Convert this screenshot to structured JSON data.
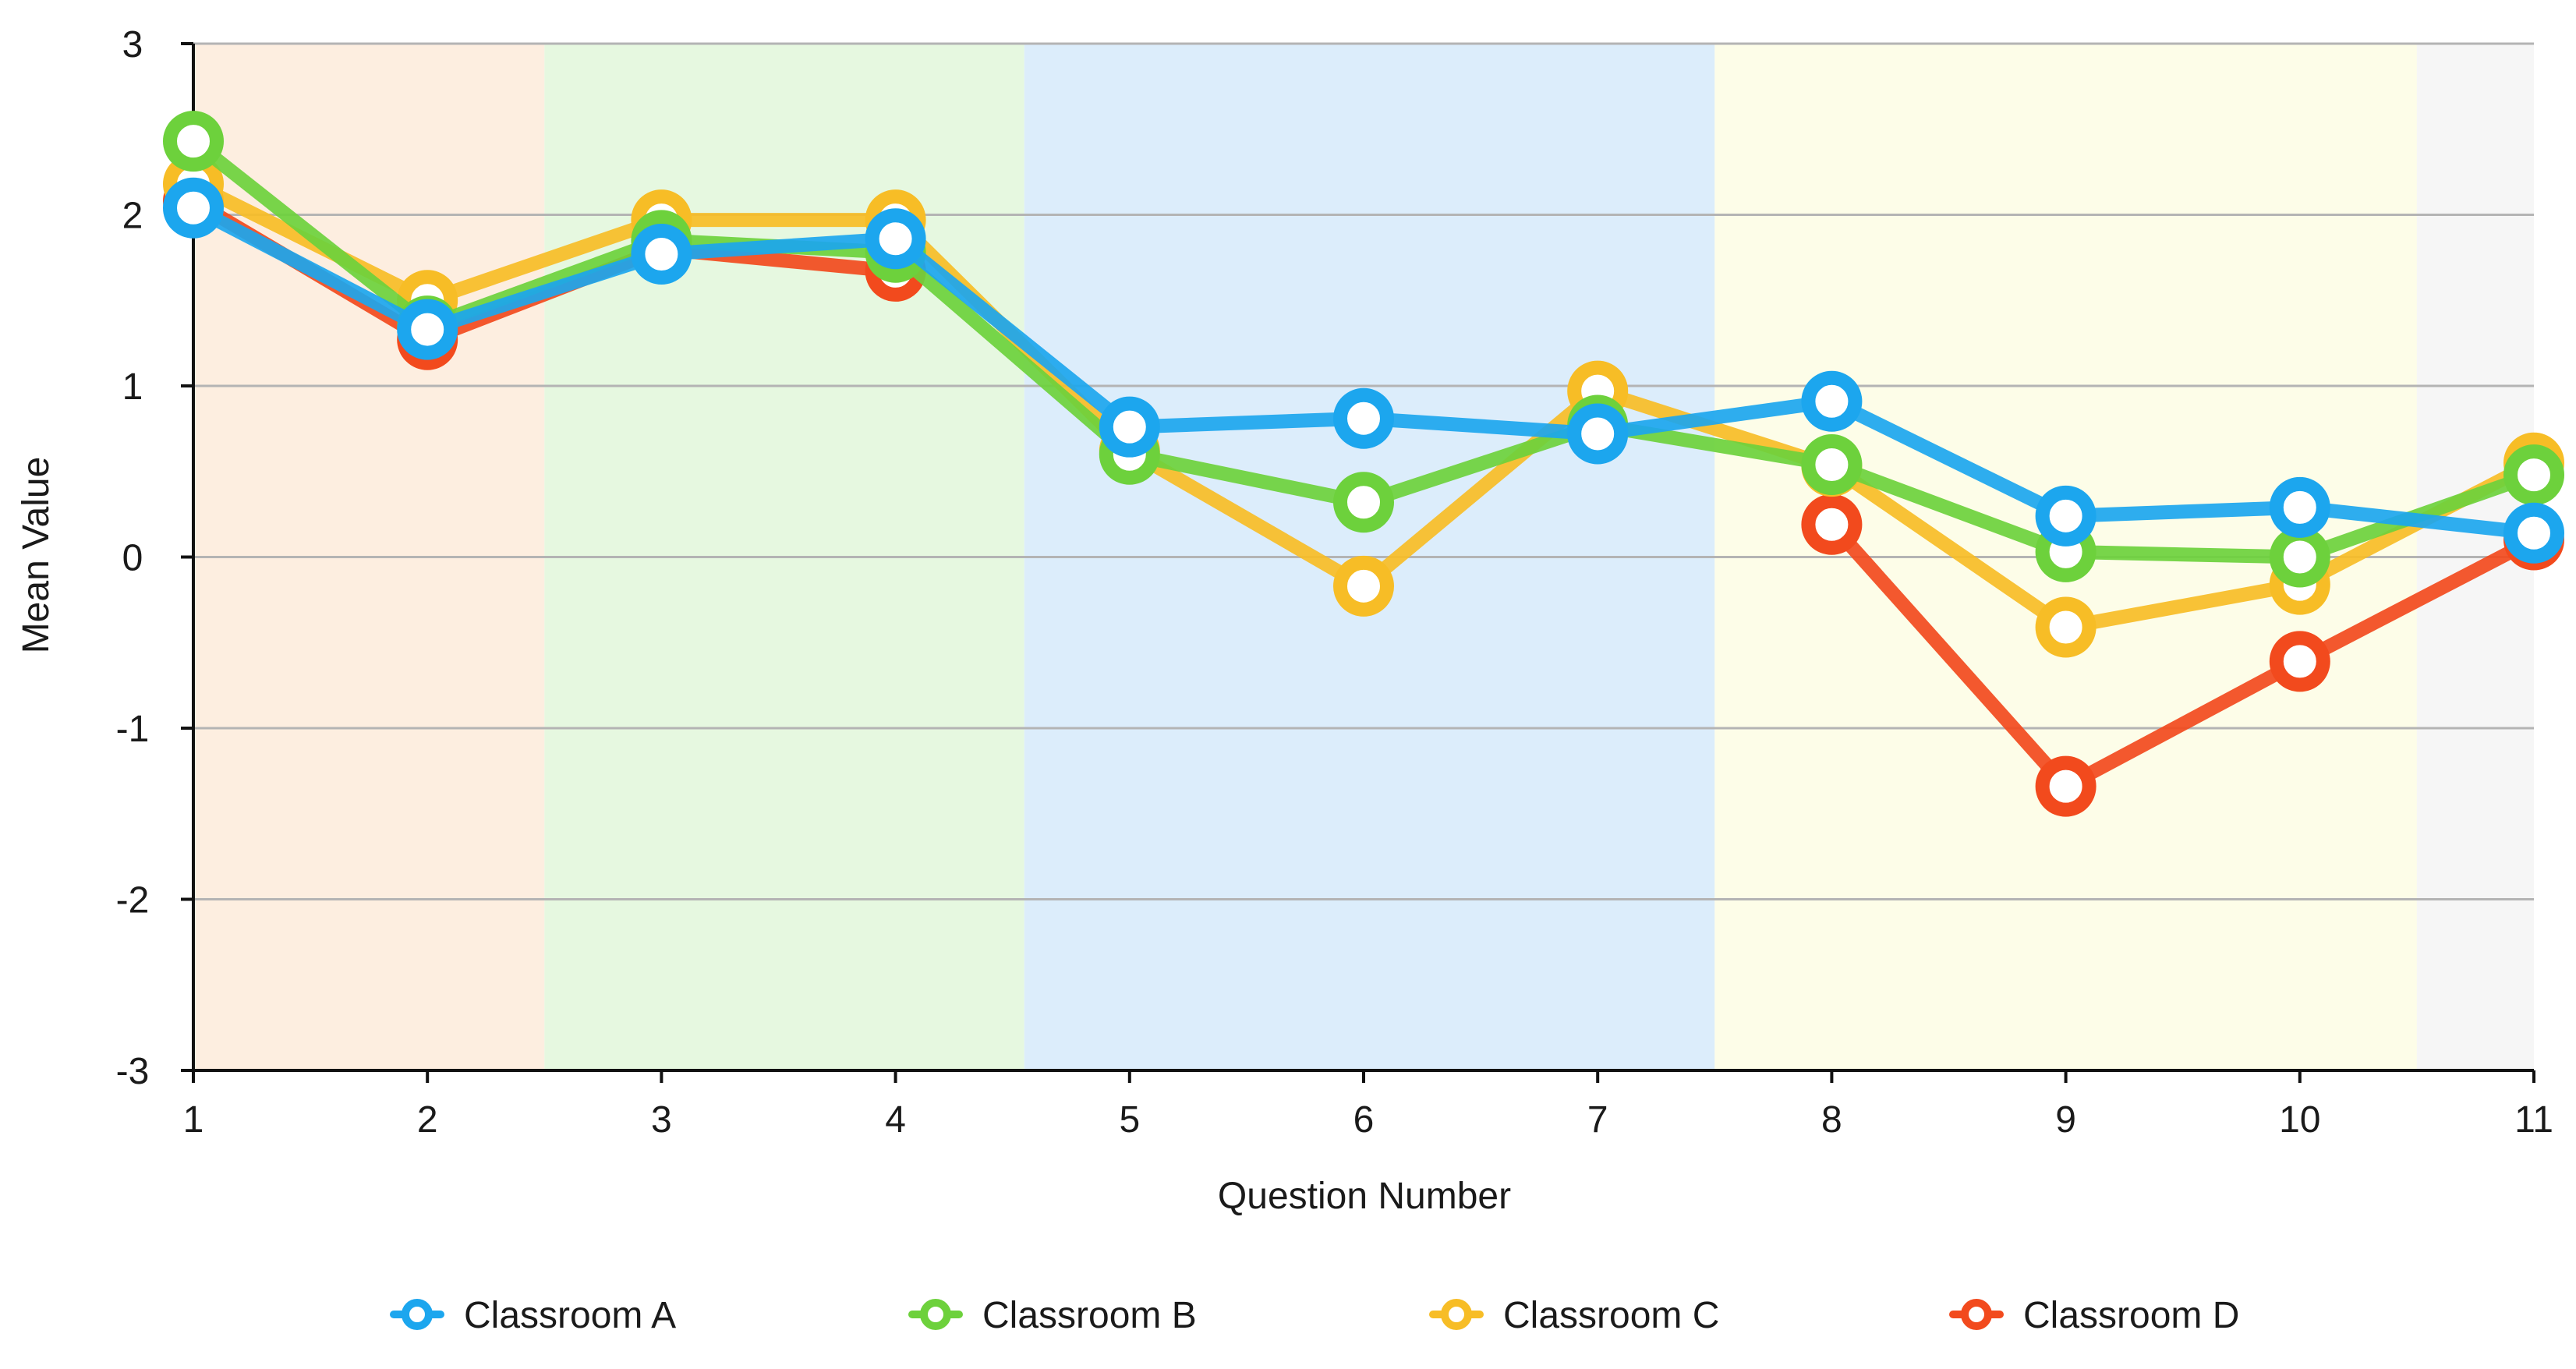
{
  "chart_data": {
    "type": "line",
    "title": "",
    "xlabel": "Question Number",
    "ylabel": "Mean Value",
    "x": [
      1,
      2,
      3,
      4,
      5,
      6,
      7,
      8,
      9,
      10,
      11
    ],
    "x_tick_labels": [
      "1",
      "2",
      "3",
      "4",
      "5",
      "6",
      "7",
      "8",
      "9",
      "10",
      "11"
    ],
    "ylim": [
      -3,
      3
    ],
    "y_ticks": [
      -3,
      -2,
      -1,
      0,
      1,
      2,
      3
    ],
    "y_tick_labels": [
      "-3",
      "-2",
      "-1",
      "0",
      "1",
      "2",
      "3"
    ],
    "grid": true,
    "legend_position": "bottom",
    "background_bands": [
      {
        "from": 1,
        "to": 2.5,
        "color": "#fdeee0"
      },
      {
        "from": 2.5,
        "to": 4.55,
        "color": "#e6f8e0"
      },
      {
        "from": 4.55,
        "to": 7.5,
        "color": "#dcedfb"
      },
      {
        "from": 7.5,
        "to": 10.5,
        "color": "#fdfde8"
      },
      {
        "from": 10.5,
        "to": 11,
        "color": "#f6f6f6"
      }
    ],
    "series": [
      {
        "name": "Classroom D",
        "color": "#f24a1d",
        "values": [
          2.08,
          1.27,
          1.8,
          1.67,
          null,
          null,
          null,
          0.19,
          -1.34,
          -0.61,
          0.1
        ]
      },
      {
        "name": "Classroom C",
        "color": "#f7bd26",
        "values": [
          2.18,
          1.5,
          1.97,
          1.97,
          0.62,
          -0.17,
          0.97,
          0.53,
          -0.41,
          -0.16,
          0.55
        ]
      },
      {
        "name": "Classroom B",
        "color": "#6dd13c",
        "values": [
          2.43,
          1.35,
          1.85,
          1.78,
          0.6,
          0.32,
          0.77,
          0.54,
          0.03,
          0.0,
          0.48
        ]
      },
      {
        "name": "Classroom A",
        "color": "#1ca6ee",
        "values": [
          2.04,
          1.33,
          1.77,
          1.86,
          0.76,
          0.81,
          0.72,
          0.91,
          0.24,
          0.29,
          0.14
        ]
      }
    ],
    "legend": [
      {
        "name": "Classroom A",
        "color": "#1ca6ee"
      },
      {
        "name": "Classroom B",
        "color": "#6dd13c"
      },
      {
        "name": "Classroom C",
        "color": "#f7bd26"
      },
      {
        "name": "Classroom D",
        "color": "#f24a1d"
      }
    ]
  }
}
